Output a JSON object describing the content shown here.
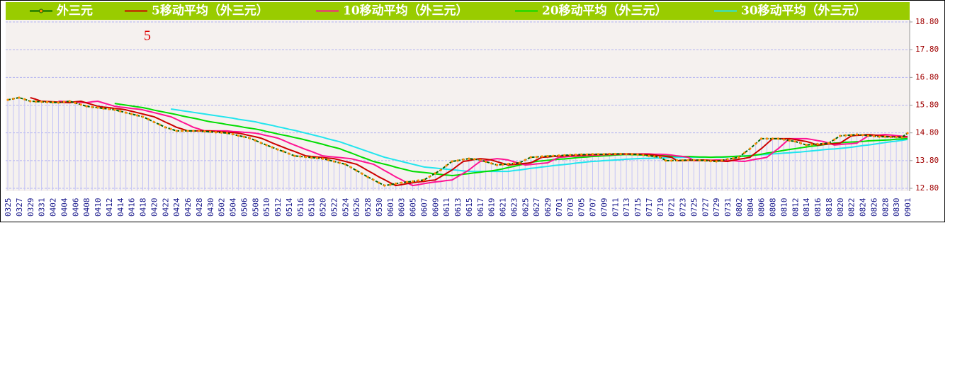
{
  "chart_data": {
    "type": "line",
    "annotations": [
      "5"
    ],
    "legend": "top",
    "grid": true,
    "drop_lines": true,
    "ylim": [
      12.8,
      18.8
    ],
    "yticks": [
      {
        "value": 12.8,
        "label": "12.80"
      },
      {
        "value": 13.8,
        "label": "13.80"
      },
      {
        "value": 14.8,
        "label": "14.80"
      },
      {
        "value": 15.8,
        "label": "15.80"
      },
      {
        "value": 16.8,
        "label": "16.80"
      },
      {
        "value": 17.8,
        "label": "17.80"
      },
      {
        "value": 18.8,
        "label": "18.80"
      }
    ],
    "categories": [
      "0325",
      null,
      "0327",
      null,
      "0329",
      null,
      "0331",
      null,
      "0402",
      null,
      "0404",
      null,
      "0406",
      null,
      "0408",
      null,
      "0410",
      null,
      "0412",
      null,
      "0414",
      null,
      "0416",
      null,
      "0418",
      null,
      "0420",
      null,
      "0422",
      null,
      "0424",
      null,
      "0426",
      null,
      "0428",
      null,
      "0430",
      null,
      "0502",
      null,
      "0504",
      null,
      "0506",
      null,
      "0508",
      null,
      "0510",
      null,
      "0512",
      null,
      "0514",
      null,
      "0516",
      null,
      "0518",
      null,
      "0520",
      null,
      "0522",
      null,
      "0524",
      null,
      "0526",
      null,
      "0528",
      null,
      "0530",
      null,
      "0601",
      null,
      "0603",
      null,
      "0605",
      null,
      "0607",
      null,
      "0609",
      null,
      "0611",
      null,
      "0613",
      null,
      "0615",
      null,
      "0617",
      null,
      "0619",
      null,
      "0621",
      null,
      "0623",
      null,
      "0625",
      null,
      "0627",
      null,
      "0629",
      null,
      "0701",
      null,
      "0703",
      null,
      "0705",
      null,
      "0707",
      null,
      "0709",
      null,
      "0711",
      null,
      "0713",
      null,
      "0715",
      null,
      "0717",
      null,
      "0719",
      null,
      "0721",
      null,
      "0723",
      null,
      "0725",
      null,
      "0727",
      null,
      "0729",
      null,
      "0731",
      null,
      "0802",
      null,
      "0804",
      null,
      "0806",
      null,
      "0808",
      null,
      "0810",
      null,
      "0812",
      null,
      "0814",
      null,
      "0816",
      null,
      "0818",
      null,
      "0820",
      null,
      "0822",
      null,
      "0824",
      null,
      "0826",
      null,
      "0828",
      null,
      "0830",
      null,
      "0901"
    ],
    "series": [
      {
        "name": "外三元",
        "color": "#006400",
        "marker_color": "#ff8c00",
        "values": [
          15.99,
          16.03,
          16.07,
          16.01,
          15.94,
          15.93,
          15.92,
          15.91,
          15.9,
          15.89,
          15.92,
          15.94,
          15.88,
          15.82,
          15.76,
          15.73,
          15.71,
          15.68,
          15.66,
          15.63,
          15.58,
          15.53,
          15.48,
          15.43,
          15.38,
          15.29,
          15.19,
          15.1,
          15.0,
          14.94,
          14.87,
          14.87,
          14.87,
          14.87,
          14.87,
          14.85,
          14.84,
          14.82,
          14.81,
          14.79,
          14.75,
          14.7,
          14.66,
          14.61,
          14.53,
          14.44,
          14.36,
          14.28,
          14.2,
          14.13,
          14.05,
          13.97,
          13.95,
          13.93,
          13.91,
          13.89,
          13.87,
          13.82,
          13.77,
          13.72,
          13.67,
          13.56,
          13.44,
          13.33,
          13.21,
          13.11,
          13.0,
          12.9,
          12.93,
          12.97,
          13.0,
          13.03,
          13.05,
          13.08,
          13.1,
          13.22,
          13.34,
          13.46,
          13.62,
          13.77,
          13.8,
          13.84,
          13.87,
          13.85,
          13.82,
          13.76,
          13.7,
          13.64,
          13.66,
          13.68,
          13.7,
          13.72,
          13.82,
          13.92,
          13.93,
          13.95,
          13.96,
          13.97,
          13.98,
          13.99,
          14.0,
          14.01,
          14.02,
          14.02,
          14.03,
          14.03,
          14.03,
          14.04,
          14.04,
          14.04,
          14.03,
          14.03,
          14.02,
          14.0,
          13.97,
          13.95,
          13.92,
          13.8,
          13.8,
          13.81,
          13.81,
          13.82,
          13.82,
          13.81,
          13.8,
          13.78,
          13.77,
          13.81,
          13.85,
          13.88,
          13.92,
          14.08,
          14.23,
          14.41,
          14.59,
          14.59,
          14.59,
          14.59,
          14.56,
          14.52,
          14.49,
          14.43,
          14.36,
          14.38,
          14.4,
          14.41,
          14.43,
          14.56,
          14.69,
          14.71,
          14.72,
          14.74,
          14.72,
          14.7,
          14.68,
          14.66,
          14.66,
          14.65,
          14.65,
          14.64,
          14.79
        ]
      },
      {
        "name": "5移动平均（外三元）",
        "color": "#cc0000",
        "values": [
          null,
          null,
          null,
          null,
          16.07,
          16.01,
          15.94,
          15.93,
          15.92,
          15.91,
          15.9,
          15.89,
          15.92,
          15.94,
          15.88,
          15.82,
          15.76,
          15.73,
          15.71,
          15.68,
          15.66,
          15.63,
          15.58,
          15.53,
          15.48,
          15.43,
          15.38,
          15.29,
          15.19,
          15.1,
          15.0,
          14.94,
          14.87,
          14.87,
          14.87,
          14.87,
          14.87,
          14.85,
          14.84,
          14.82,
          14.81,
          14.79,
          14.75,
          14.7,
          14.66,
          14.61,
          14.53,
          14.44,
          14.36,
          14.28,
          14.2,
          14.13,
          14.05,
          13.97,
          13.95,
          13.93,
          13.91,
          13.89,
          13.87,
          13.82,
          13.77,
          13.72,
          13.67,
          13.56,
          13.44,
          13.33,
          13.21,
          13.11,
          13.0,
          12.9,
          12.93,
          12.97,
          13.0,
          13.03,
          13.05,
          13.08,
          13.1,
          13.22,
          13.34,
          13.46,
          13.62,
          13.77,
          13.8,
          13.84,
          13.87,
          13.85,
          13.82,
          13.76,
          13.7,
          13.64,
          13.66,
          13.68,
          13.7,
          13.72,
          13.82,
          13.92,
          13.93,
          13.95,
          13.96,
          13.97,
          13.98,
          13.99,
          14.0,
          14.01,
          14.02,
          14.02,
          14.03,
          14.03,
          14.03,
          14.04,
          14.04,
          14.04,
          14.03,
          14.03,
          14.02,
          14.0,
          13.97,
          13.95,
          13.92,
          13.8,
          13.8,
          13.81,
          13.81,
          13.82,
          13.82,
          13.81,
          13.8,
          13.78,
          13.77,
          13.81,
          13.85,
          13.88,
          13.92,
          14.08,
          14.23,
          14.41,
          14.59,
          14.59,
          14.59,
          14.59,
          14.56,
          14.52,
          14.49,
          14.43,
          14.36,
          14.38,
          14.4,
          14.41,
          14.43,
          14.56,
          14.69,
          14.71,
          14.72,
          14.74,
          14.72,
          14.7,
          14.68,
          14.66,
          14.66,
          14.65,
          14.65
        ]
      },
      {
        "name": "10移动平均（外三元）",
        "color": "#ff1493",
        "values": [
          null,
          null,
          null,
          null,
          null,
          null,
          null,
          null,
          null,
          15.94,
          15.93,
          15.92,
          15.91,
          15.9,
          15.89,
          15.92,
          15.94,
          15.88,
          15.82,
          15.76,
          15.73,
          15.71,
          15.68,
          15.66,
          15.63,
          15.58,
          15.53,
          15.48,
          15.43,
          15.38,
          15.29,
          15.19,
          15.1,
          15.0,
          14.94,
          14.87,
          14.87,
          14.87,
          14.87,
          14.87,
          14.85,
          14.84,
          14.82,
          14.81,
          14.79,
          14.75,
          14.7,
          14.66,
          14.61,
          14.53,
          14.44,
          14.36,
          14.28,
          14.2,
          14.13,
          14.05,
          13.97,
          13.95,
          13.93,
          13.91,
          13.89,
          13.87,
          13.82,
          13.77,
          13.72,
          13.67,
          13.56,
          13.44,
          13.33,
          13.21,
          13.11,
          13.0,
          12.9,
          12.93,
          12.97,
          13.0,
          13.03,
          13.05,
          13.08,
          13.1,
          13.22,
          13.34,
          13.46,
          13.62,
          13.77,
          13.8,
          13.84,
          13.87,
          13.85,
          13.82,
          13.76,
          13.7,
          13.64,
          13.66,
          13.68,
          13.7,
          13.72,
          13.82,
          13.92,
          13.93,
          13.95,
          13.96,
          13.97,
          13.98,
          13.99,
          14.0,
          14.01,
          14.02,
          14.02,
          14.03,
          14.03,
          14.03,
          14.04,
          14.04,
          14.04,
          14.03,
          14.03,
          14.02,
          14.0,
          13.97,
          13.95,
          13.92,
          13.8,
          13.8,
          13.81,
          13.81,
          13.82,
          13.82,
          13.81,
          13.8,
          13.78,
          13.77,
          13.81,
          13.85,
          13.88,
          13.92,
          14.08,
          14.23,
          14.41,
          14.59,
          14.59,
          14.59,
          14.59,
          14.56,
          14.52,
          14.49,
          14.43,
          14.36,
          14.38,
          14.4,
          14.41,
          14.43,
          14.56,
          14.69,
          14.71,
          14.72,
          14.74,
          14.72,
          14.7,
          14.68,
          14.66
        ]
      },
      {
        "name": "20移动平均（外三元）",
        "color": "#00dd00",
        "values": [
          null,
          null,
          null,
          null,
          null,
          null,
          null,
          null,
          null,
          null,
          null,
          null,
          null,
          null,
          null,
          null,
          null,
          null,
          null,
          15.86,
          15.83,
          15.8,
          15.77,
          15.74,
          15.71,
          15.67,
          15.62,
          15.58,
          15.54,
          15.5,
          15.46,
          15.41,
          15.37,
          15.33,
          15.29,
          15.24,
          15.2,
          15.17,
          15.14,
          15.1,
          15.07,
          15.04,
          15.0,
          14.97,
          14.94,
          14.9,
          14.85,
          14.81,
          14.76,
          14.72,
          14.68,
          14.63,
          14.59,
          14.54,
          14.49,
          14.44,
          14.39,
          14.33,
          14.28,
          14.23,
          14.15,
          14.08,
          14.0,
          13.92,
          13.85,
          13.77,
          13.72,
          13.67,
          13.62,
          13.56,
          13.51,
          13.46,
          13.41,
          13.39,
          13.37,
          13.35,
          13.32,
          13.3,
          13.28,
          13.26,
          13.28,
          13.31,
          13.33,
          13.36,
          13.38,
          13.41,
          13.43,
          13.46,
          13.5,
          13.55,
          13.59,
          13.64,
          13.68,
          13.73,
          13.77,
          13.79,
          13.81,
          13.83,
          13.85,
          13.86,
          13.88,
          13.9,
          13.92,
          13.93,
          13.95,
          13.96,
          13.97,
          13.98,
          14.0,
          14.01,
          14.02,
          14.01,
          14.01,
          14.0,
          13.99,
          13.98,
          13.98,
          13.97,
          13.96,
          13.96,
          13.95,
          13.95,
          13.94,
          13.93,
          13.93,
          13.92,
          13.93,
          13.93,
          13.94,
          13.95,
          13.96,
          13.96,
          13.97,
          14.0,
          14.03,
          14.07,
          14.1,
          14.13,
          14.17,
          14.2,
          14.23,
          14.26,
          14.29,
          14.32,
          14.34,
          14.37,
          14.4,
          14.43,
          14.44,
          14.46,
          14.47,
          14.48,
          14.49,
          14.51,
          14.52,
          14.53,
          14.54,
          14.55,
          14.57,
          14.58,
          14.59
        ]
      },
      {
        "name": "30移动平均（外三元）",
        "color": "#22e5ee",
        "values": [
          null,
          null,
          null,
          null,
          null,
          null,
          null,
          null,
          null,
          null,
          null,
          null,
          null,
          null,
          null,
          null,
          null,
          null,
          null,
          null,
          null,
          null,
          null,
          null,
          null,
          null,
          null,
          null,
          null,
          15.66,
          15.63,
          15.6,
          15.57,
          15.54,
          15.51,
          15.48,
          15.45,
          15.42,
          15.39,
          15.36,
          15.33,
          15.29,
          15.26,
          15.23,
          15.2,
          15.15,
          15.11,
          15.07,
          15.02,
          14.98,
          14.93,
          14.89,
          14.84,
          14.79,
          14.74,
          14.69,
          14.64,
          14.58,
          14.53,
          14.48,
          14.41,
          14.34,
          14.27,
          14.2,
          14.13,
          14.06,
          13.99,
          13.92,
          13.87,
          13.82,
          13.77,
          13.72,
          13.67,
          13.62,
          13.57,
          13.55,
          13.53,
          13.51,
          13.49,
          13.47,
          13.45,
          13.43,
          13.41,
          13.41,
          13.41,
          13.41,
          13.41,
          13.41,
          13.41,
          13.41,
          13.44,
          13.46,
          13.49,
          13.52,
          13.54,
          13.57,
          13.59,
          13.62,
          13.64,
          13.66,
          13.68,
          13.71,
          13.73,
          13.75,
          13.77,
          13.78,
          13.8,
          13.81,
          13.82,
          13.83,
          13.85,
          13.86,
          13.87,
          13.88,
          13.88,
          13.89,
          13.89,
          13.9,
          13.91,
          13.91,
          13.92,
          13.92,
          13.92,
          13.92,
          13.92,
          13.92,
          13.92,
          13.92,
          13.93,
          13.95,
          13.96,
          13.97,
          13.98,
          14.0,
          14.01,
          14.02,
          14.04,
          14.05,
          14.07,
          14.08,
          14.1,
          14.11,
          14.13,
          14.15,
          14.17,
          14.19,
          14.21,
          14.22,
          14.24,
          14.26,
          14.28,
          14.31,
          14.34,
          14.36,
          14.39,
          14.42,
          14.45,
          14.48,
          14.5,
          14.53,
          14.56
        ]
      }
    ]
  }
}
